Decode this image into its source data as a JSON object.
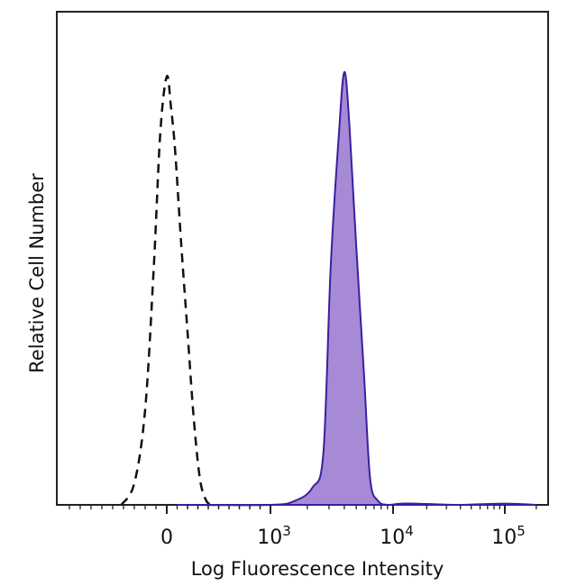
{
  "chart_data": {
    "type": "area",
    "title": "",
    "xlabel": "Log Fluorescence Intensity",
    "ylabel": "Relative Cell Number",
    "x_scale": "biexponential",
    "xlim": [
      -1000,
      250000
    ],
    "ylim": [
      0,
      1.0
    ],
    "ticks": [
      {
        "value": 0,
        "base": "0",
        "exp": ""
      },
      {
        "value": 1000,
        "base": "10",
        "exp": "3"
      },
      {
        "value": 10000,
        "base": "10",
        "exp": "4"
      },
      {
        "value": 100000,
        "base": "10",
        "exp": "5"
      }
    ],
    "legend": "none",
    "grid": false,
    "colors": {
      "fill": "#a68ad6",
      "stroke": "#3a1fa0",
      "dashed": "#111111",
      "frame": "#222222"
    },
    "series": [
      {
        "style": "dashed-outline",
        "x": [
          -420,
          -300,
          -200,
          -120,
          -60,
          0,
          40,
          80,
          140,
          200,
          260,
          320,
          380,
          440
        ],
        "y": [
          0.0,
          0.05,
          0.22,
          0.55,
          0.86,
          0.99,
          0.92,
          0.82,
          0.6,
          0.4,
          0.2,
          0.06,
          0.01,
          0.0
        ]
      },
      {
        "style": "filled",
        "x": [
          100,
          1000,
          1600,
          2200,
          2700,
          3100,
          3600,
          4000,
          4400,
          5000,
          5800,
          6500,
          7500,
          9000,
          12000,
          20000,
          40000,
          100000,
          200000
        ],
        "y": [
          0.0,
          0.0,
          0.01,
          0.04,
          0.12,
          0.55,
          0.85,
          1.0,
          0.88,
          0.6,
          0.3,
          0.06,
          0.01,
          0.0,
          0.003,
          0.002,
          0.0,
          0.003,
          0.0
        ]
      }
    ]
  }
}
